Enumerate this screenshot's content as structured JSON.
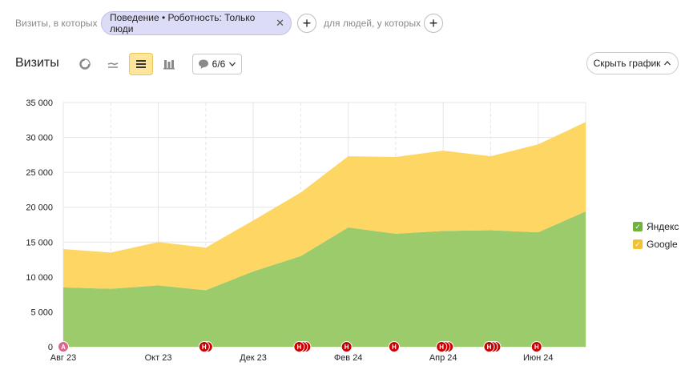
{
  "filters": {
    "lead": "Визиты, в которых",
    "chip": "Поведение • Роботность: Только люди",
    "middle": "для людей, у которых"
  },
  "toolbar": {
    "title": "Визиты",
    "notes_label": "6/6",
    "hide_chart": "Скрыть график"
  },
  "colors": {
    "yandex": "#9bcb6a",
    "google": "#fdd663",
    "marker": "#cc0000",
    "marker_first": "#e0638f"
  },
  "icons": [
    "pie-chart-icon",
    "line-chart-icon",
    "stacked-area-icon",
    "bar-chart-icon",
    "comment-icon",
    "chevron-down-icon",
    "chevron-up-icon",
    "close-icon",
    "plus-icon"
  ],
  "chart_data": {
    "type": "area",
    "stacked": true,
    "x": [
      "2023-08",
      "2023-09",
      "2023-10",
      "2023-11",
      "2023-12",
      "2024-01",
      "2024-02",
      "2024-03",
      "2024-04",
      "2024-05",
      "2024-06",
      "2024-07"
    ],
    "xtick_labels": [
      "Авг 23",
      "Окт 23",
      "Дек 23",
      "Фев 24",
      "Апр 24",
      "Июн 24"
    ],
    "xtick_values": [
      "2023-08",
      "2023-10",
      "2023-12",
      "2024-02",
      "2024-04",
      "2024-06"
    ],
    "ytick_labels": [
      "0",
      "5 000",
      "10 000",
      "15 000",
      "20 000",
      "25 000",
      "30 000",
      "35 000"
    ],
    "ytick_values": [
      0,
      5000,
      10000,
      15000,
      20000,
      25000,
      30000,
      35000
    ],
    "ylim": [
      0,
      35000
    ],
    "series": [
      {
        "name": "Яндекс",
        "color": "#9bcb6a",
        "values": [
          8500,
          8300,
          8800,
          8100,
          10800,
          13000,
          17100,
          16200,
          16600,
          16700,
          16400,
          19400
        ]
      },
      {
        "name": "Google",
        "color": "#fdd663",
        "values": [
          5500,
          5200,
          6200,
          6100,
          7300,
          9100,
          10200,
          11000,
          11500,
          10600,
          12600,
          12800
        ]
      }
    ],
    "grid": true,
    "legend": "right",
    "markers": [
      {
        "x": "2023-08",
        "label": "А",
        "count": 1
      },
      {
        "x": "2023-11",
        "label": "Н",
        "count": 2
      },
      {
        "x": "2024-01",
        "label": "Н",
        "count": 3
      },
      {
        "x": "2024-02",
        "label": "Н",
        "count": 1
      },
      {
        "x": "2024-03",
        "label": "Н",
        "count": 1
      },
      {
        "x": "2024-04",
        "label": "Н",
        "count": 3
      },
      {
        "x": "2024-05",
        "label": "Н",
        "count": 3
      },
      {
        "x": "2024-06",
        "label": "Н",
        "count": 1
      }
    ]
  }
}
